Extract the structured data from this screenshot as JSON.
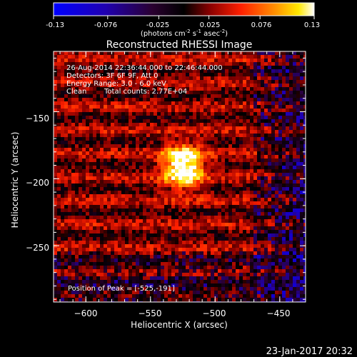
{
  "title": "Reconstructed RHESSI Image",
  "colorbar": {
    "tick_labels": [
      "-0.13",
      "-0.076",
      "-0.025",
      "0.025",
      "0.076",
      "0.13"
    ],
    "range": [
      -0.13,
      0.13
    ],
    "unit_label": "(photons cm",
    "unit_exp1": "-2",
    "unit_mid": " s",
    "unit_exp2": "-1",
    "unit_mid2": " asec",
    "unit_exp3": "-2",
    "unit_end": ")"
  },
  "annotations": {
    "line1": "26-Aug-2014 22:36:44.000 to 22:46:44.000",
    "line2": "Detectors: 3F 6F 9F, Att 0",
    "line3": "Energy Range: 3.0 - 6.0 keV",
    "line4_method": "Clean",
    "line4_counts": "Total counts: 2.77E+04",
    "peak": "Position of Peak = [-525,-191]"
  },
  "footer_date": "23-Jan-2017 20:32",
  "chart_data": {
    "type": "heatmap",
    "title": "Reconstructed RHESSI Image",
    "xlabel": "Heliocentric X (arcsec)",
    "ylabel": "Heliocentric Y (arcsec)",
    "xlim": [
      -625,
      -430
    ],
    "ylim": [
      -292,
      -105
    ],
    "x_ticks": [
      -600,
      -550,
      -500,
      -450
    ],
    "y_ticks": [
      -150,
      -200,
      -250
    ],
    "x_tick_labels": [
      "−600",
      "−550",
      "−500",
      "−450"
    ],
    "y_tick_labels": [
      "−150",
      "−200",
      "−250"
    ],
    "colormap": "rhessi-hot",
    "peak_position": [
      -525,
      -191
    ],
    "peak_value": 0.13,
    "background_level": 0.025
  }
}
